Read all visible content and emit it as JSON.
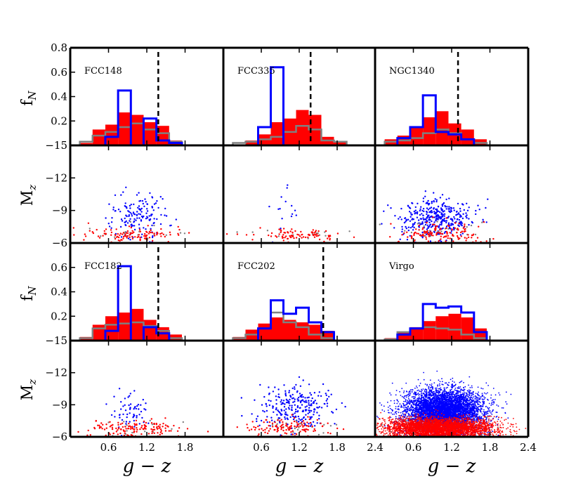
{
  "labels": {
    "fN_main": "f",
    "fN_sub": "N",
    "Mz_main": "M",
    "Mz_sub": "z",
    "xlabel": "g − z"
  },
  "ticks": {
    "hist_y": [
      "0.2",
      "0.4",
      "0.6",
      "0.8"
    ],
    "hist_y_bottom": "−15",
    "mag_y": [
      "−12",
      "−9",
      "−6"
    ],
    "x_left": [
      "0.6",
      "1.2",
      "1.8"
    ],
    "x_mid": [
      "0.6",
      "1.2",
      "1.8",
      "2.4"
    ],
    "x_right": [
      "0.6",
      "1.2",
      "1.8",
      "2.4"
    ]
  },
  "colors": {
    "red": "#ff0000",
    "blue": "#0000ff",
    "gray": "#808080",
    "dashed": "#000000"
  },
  "chart_data": [
    {
      "type": "bar",
      "panel": "FCC148",
      "label": "FCC148",
      "xlim": [
        0,
        2.4
      ],
      "ylim": [
        0,
        0.8
      ],
      "bin_edges": [
        0.15,
        0.35,
        0.55,
        0.75,
        0.95,
        1.15,
        1.35,
        1.55,
        1.75
      ],
      "series": [
        {
          "name": "red",
          "values": [
            0.02,
            0.13,
            0.17,
            0.27,
            0.25,
            0.19,
            0.16,
            0.04
          ]
        },
        {
          "name": "blue",
          "values": [
            0.0,
            0.0,
            0.07,
            0.45,
            0.0,
            0.22,
            0.04,
            0.02
          ]
        },
        {
          "name": "gray",
          "values": [
            0.03,
            0.08,
            0.11,
            0.15,
            0.18,
            0.13,
            0.1,
            0.03
          ]
        }
      ],
      "dashed_x": 1.38
    },
    {
      "type": "bar",
      "panel": "FCC335",
      "label": "FCC335",
      "xlim": [
        0,
        2.4
      ],
      "ylim": [
        0,
        0.8
      ],
      "bin_edges": [
        0.15,
        0.35,
        0.55,
        0.75,
        0.95,
        1.15,
        1.35,
        1.55,
        1.75,
        1.95
      ],
      "series": [
        {
          "name": "red",
          "values": [
            0.0,
            0.04,
            0.09,
            0.19,
            0.22,
            0.29,
            0.25,
            0.07,
            0.03
          ]
        },
        {
          "name": "blue",
          "values": [
            0.0,
            0.0,
            0.15,
            0.64,
            0.0,
            0.0,
            0.0,
            0.0,
            0.0
          ]
        },
        {
          "name": "gray",
          "values": [
            0.02,
            0.03,
            0.05,
            0.07,
            0.11,
            0.16,
            0.13,
            0.04,
            0.03
          ]
        }
      ],
      "dashed_x": 1.38
    },
    {
      "type": "bar",
      "panel": "NGC1340",
      "label": "NGC1340",
      "xlim": [
        0,
        2.4
      ],
      "ylim": [
        0,
        0.8
      ],
      "bin_edges": [
        0.15,
        0.35,
        0.55,
        0.75,
        0.95,
        1.15,
        1.35,
        1.55,
        1.75
      ],
      "series": [
        {
          "name": "red",
          "values": [
            0.05,
            0.08,
            0.15,
            0.23,
            0.28,
            0.18,
            0.13,
            0.05
          ]
        },
        {
          "name": "blue",
          "values": [
            0.0,
            0.06,
            0.15,
            0.41,
            0.11,
            0.09,
            0.05,
            0.0
          ]
        },
        {
          "name": "gray",
          "values": [
            0.03,
            0.04,
            0.06,
            0.1,
            0.13,
            0.1,
            0.05,
            0.02
          ]
        }
      ],
      "dashed_x": 1.3
    },
    {
      "type": "scatter",
      "panel": "FCC148-mag",
      "xlim": [
        0,
        2.4
      ],
      "ylim": [
        -15,
        -6
      ],
      "y_inverted": true,
      "groups": [
        {
          "name": "blue",
          "n": 150,
          "xmean": 1.05,
          "xsd": 0.25,
          "ymean": -8.5,
          "ysd": 1.0
        },
        {
          "name": "red",
          "n": 110,
          "xmean": 1.05,
          "xsd": 0.38,
          "ymean": -6.7,
          "ysd": 0.35
        },
        {
          "name": "gray",
          "n": 20,
          "xmean": 1.1,
          "xsd": 0.4,
          "ymean": -6.8,
          "ysd": 0.4
        }
      ]
    },
    {
      "type": "scatter",
      "panel": "FCC335-mag",
      "xlim": [
        0,
        2.4
      ],
      "ylim": [
        -15,
        -6
      ],
      "y_inverted": true,
      "groups": [
        {
          "name": "blue",
          "n": 15,
          "xmean": 0.95,
          "xsd": 0.12,
          "ymean": -9.0,
          "ysd": 1.2
        },
        {
          "name": "red",
          "n": 90,
          "xmean": 1.15,
          "xsd": 0.35,
          "ymean": -6.7,
          "ysd": 0.3
        },
        {
          "name": "gray",
          "n": 15,
          "xmean": 1.1,
          "xsd": 0.4,
          "ymean": -6.8,
          "ysd": 0.3
        }
      ]
    },
    {
      "type": "scatter",
      "panel": "NGC1340-mag",
      "xlim": [
        0,
        2.4
      ],
      "ylim": [
        -15,
        -6
      ],
      "y_inverted": true,
      "groups": [
        {
          "name": "blue",
          "n": 380,
          "xmean": 0.95,
          "xsd": 0.28,
          "ymean": -8.3,
          "ysd": 0.9
        },
        {
          "name": "red",
          "n": 140,
          "xmean": 1.05,
          "xsd": 0.32,
          "ymean": -6.9,
          "ysd": 0.45
        },
        {
          "name": "gray",
          "n": 25,
          "xmean": 1.0,
          "xsd": 0.35,
          "ymean": -7.0,
          "ysd": 0.5
        }
      ]
    },
    {
      "type": "bar",
      "panel": "FCC182",
      "label": "FCC182",
      "xlim": [
        0,
        2.4
      ],
      "ylim": [
        0,
        0.8
      ],
      "bin_edges": [
        0.15,
        0.35,
        0.55,
        0.75,
        0.95,
        1.15,
        1.35,
        1.55,
        1.75
      ],
      "series": [
        {
          "name": "red",
          "values": [
            0.03,
            0.13,
            0.2,
            0.23,
            0.26,
            0.17,
            0.11,
            0.05
          ]
        },
        {
          "name": "blue",
          "values": [
            0.0,
            0.0,
            0.08,
            0.61,
            0.0,
            0.11,
            0.06,
            0.0
          ]
        },
        {
          "name": "gray",
          "values": [
            0.02,
            0.1,
            0.13,
            0.14,
            0.15,
            0.12,
            0.08,
            0.02
          ]
        }
      ],
      "dashed_x": 1.38
    },
    {
      "type": "bar",
      "panel": "FCC202",
      "label": "FCC202",
      "xlim": [
        0,
        2.4
      ],
      "ylim": [
        0,
        0.8
      ],
      "bin_edges": [
        0.15,
        0.35,
        0.55,
        0.75,
        0.95,
        1.15,
        1.35,
        1.55,
        1.75
      ],
      "series": [
        {
          "name": "red",
          "values": [
            0.03,
            0.09,
            0.14,
            0.19,
            0.17,
            0.15,
            0.13,
            0.08
          ]
        },
        {
          "name": "blue",
          "values": [
            0.0,
            0.0,
            0.1,
            0.33,
            0.22,
            0.27,
            0.15,
            0.07
          ]
        },
        {
          "name": "gray",
          "values": [
            0.02,
            0.05,
            0.1,
            0.23,
            0.15,
            0.11,
            0.05,
            0.02
          ]
        }
      ],
      "dashed_x": 1.58
    },
    {
      "type": "bar",
      "panel": "Virgo",
      "label": "Virgo",
      "xlim": [
        0,
        2.4
      ],
      "ylim": [
        0,
        0.8
      ],
      "bin_edges": [
        0.15,
        0.35,
        0.55,
        0.75,
        0.95,
        1.15,
        1.35,
        1.55,
        1.75
      ],
      "series": [
        {
          "name": "red",
          "values": [
            0.02,
            0.07,
            0.11,
            0.16,
            0.2,
            0.22,
            0.19,
            0.1
          ]
        },
        {
          "name": "blue",
          "values": [
            0.0,
            0.05,
            0.1,
            0.3,
            0.27,
            0.28,
            0.23,
            0.07
          ]
        },
        {
          "name": "gray",
          "values": [
            0.01,
            0.07,
            0.1,
            0.11,
            0.1,
            0.09,
            0.05,
            0.02
          ]
        }
      ]
    },
    {
      "type": "scatter",
      "panel": "FCC182-mag",
      "xlim": [
        0,
        2.4
      ],
      "ylim": [
        -15,
        -6
      ],
      "y_inverted": true,
      "groups": [
        {
          "name": "blue",
          "n": 60,
          "xmean": 0.95,
          "xsd": 0.15,
          "ymean": -8.3,
          "ysd": 0.9
        },
        {
          "name": "red",
          "n": 140,
          "xmean": 1.05,
          "xsd": 0.38,
          "ymean": -6.8,
          "ysd": 0.4
        },
        {
          "name": "gray",
          "n": 15,
          "xmean": 1.1,
          "xsd": 0.4,
          "ymean": -6.9,
          "ysd": 0.4
        }
      ]
    },
    {
      "type": "scatter",
      "panel": "FCC202-mag",
      "xlim": [
        0,
        2.4
      ],
      "ylim": [
        -15,
        -6
      ],
      "y_inverted": true,
      "groups": [
        {
          "name": "blue",
          "n": 260,
          "xmean": 1.15,
          "xsd": 0.28,
          "ymean": -8.8,
          "ysd": 1.0
        },
        {
          "name": "red",
          "n": 120,
          "xmean": 1.05,
          "xsd": 0.35,
          "ymean": -6.9,
          "ysd": 0.4
        },
        {
          "name": "gray",
          "n": 20,
          "xmean": 1.1,
          "xsd": 0.35,
          "ymean": -6.9,
          "ysd": 0.4
        }
      ]
    },
    {
      "type": "scatter",
      "panel": "Virgo-mag",
      "xlim": [
        0,
        2.4
      ],
      "ylim": [
        -15,
        -6
      ],
      "y_inverted": true,
      "groups": [
        {
          "name": "blue",
          "n": 5500,
          "xmean": 1.08,
          "xsd": 0.3,
          "ymean": -8.4,
          "ysd": 1.0
        },
        {
          "name": "red",
          "n": 3500,
          "xmean": 1.0,
          "xsd": 0.42,
          "ymean": -6.85,
          "ysd": 0.45
        },
        {
          "name": "gray",
          "n": 120,
          "xmean": 1.0,
          "xsd": 0.4,
          "ymean": -6.9,
          "ysd": 0.4
        }
      ]
    }
  ]
}
